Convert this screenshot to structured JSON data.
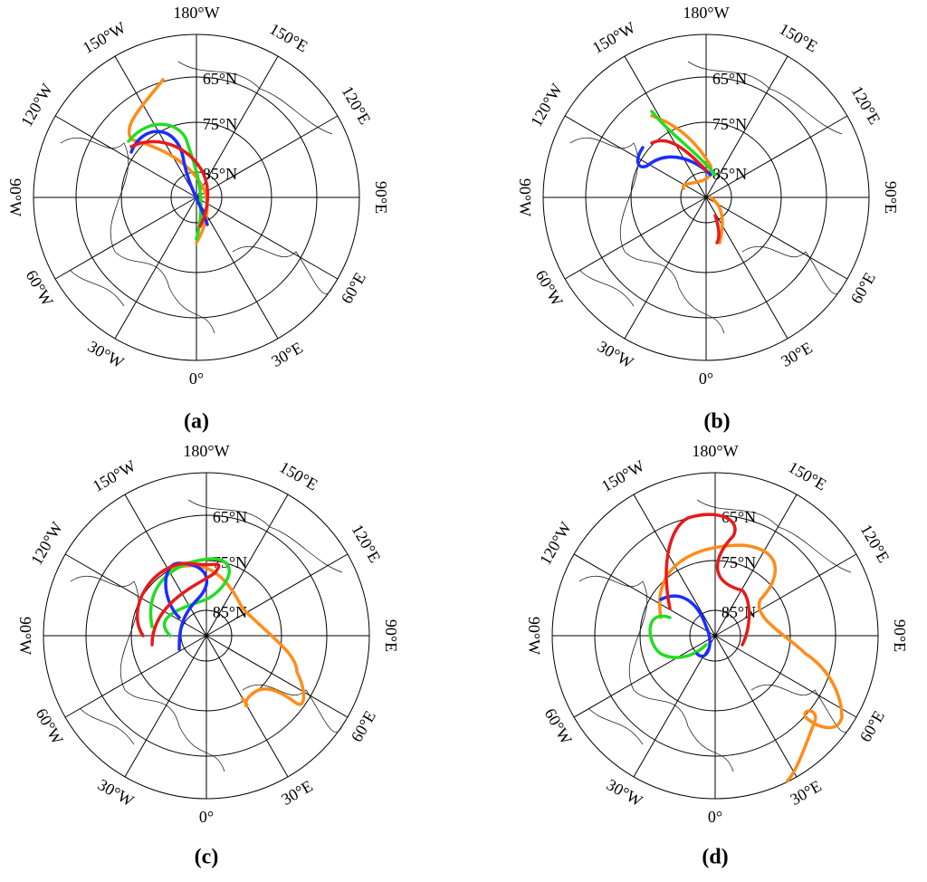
{
  "panels": [
    {
      "label": "(a)",
      "longitudes": [
        "180°W",
        "150°E",
        "120°E",
        "90°E",
        "60°E",
        "30°E",
        "0°",
        "30°W",
        "60°W",
        "90°W",
        "120°W",
        "150°W"
      ],
      "latitudes": [
        "65°N",
        "75°N",
        "85°N"
      ]
    },
    {
      "label": "(b)",
      "longitudes": [
        "180°W",
        "150°E",
        "120°E",
        "90°E",
        "60°E",
        "30°E",
        "0°",
        "30°W",
        "60°W",
        "90°W",
        "120°W",
        "150°W"
      ],
      "latitudes": [
        "65°N",
        "75°N",
        "85°N"
      ]
    },
    {
      "label": "(c)",
      "longitudes": [
        "180°W",
        "150°E",
        "120°E",
        "90°E",
        "60°E",
        "30°E",
        "0°",
        "30°W",
        "60°W",
        "90°W",
        "120°W",
        "150°W"
      ],
      "latitudes": [
        "65°N",
        "75°N",
        "85°N"
      ]
    },
    {
      "label": "(d)",
      "longitudes": [
        "180°W",
        "150°E",
        "120°E",
        "90°E",
        "60°E",
        "30°E",
        "0°",
        "30°W",
        "60°W",
        "90°W",
        "120°W",
        "150°W"
      ],
      "latitudes": [
        "65°N",
        "75°N",
        "85°N"
      ]
    }
  ]
}
